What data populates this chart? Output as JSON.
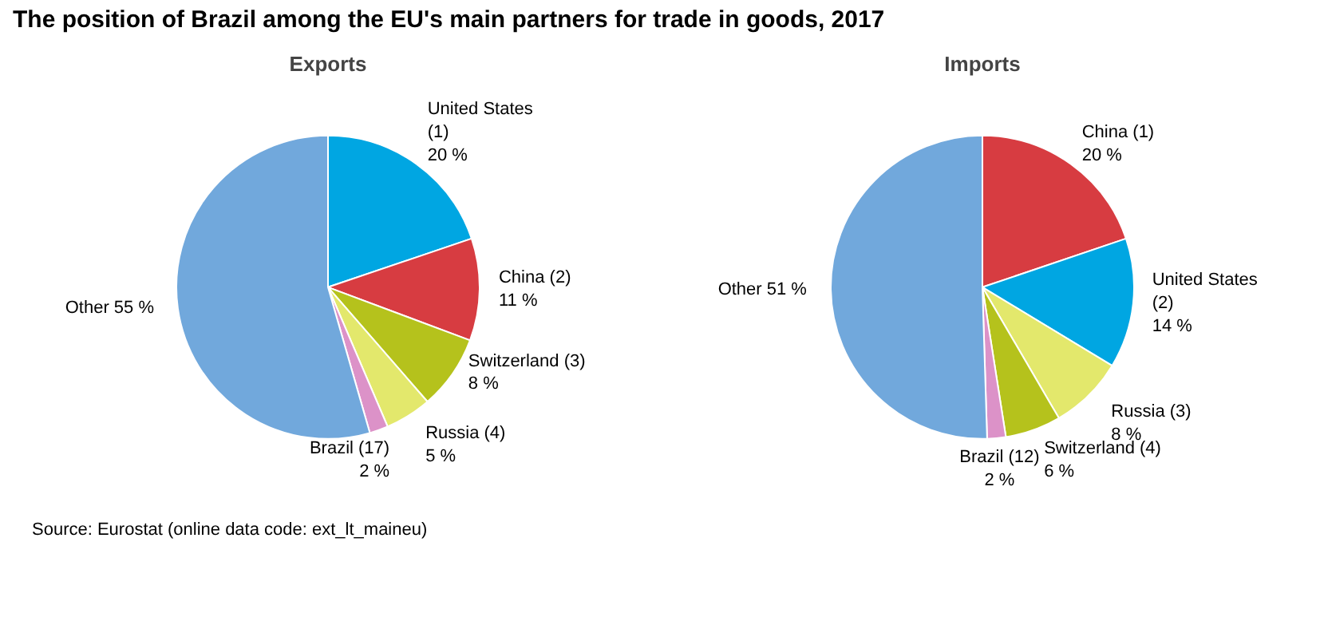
{
  "chart_data": [
    {
      "type": "pie",
      "title": "The position of Brazil among the EU's main partners for trade in goods, 2017",
      "subtitle": "Exports",
      "categories": [
        "United States (1)",
        "China (2)",
        "Switzerland (3)",
        "Russia (4)",
        "Brazil (17)",
        "Other"
      ],
      "values": [
        20,
        11,
        8,
        5,
        2,
        55
      ],
      "value_labels": [
        "20 %",
        "11 %",
        "8 %",
        "5 %",
        "2 %",
        "55  %"
      ],
      "colors": [
        "#00a6e2",
        "#d73c41",
        "#b5c21c",
        "#e3e86c",
        "#dc92c8",
        "#71a8dc"
      ],
      "annotations": [
        "Source: Eurostat (online data code: ext_lt_maineu)"
      ]
    },
    {
      "type": "pie",
      "subtitle": "Imports",
      "categories": [
        "China (1)",
        "United States (2)",
        "Russia (3)",
        "Switzerland (4)",
        "Brazil (12)",
        "Other"
      ],
      "values": [
        20,
        14,
        8,
        6,
        2,
        51
      ],
      "value_labels": [
        "20 %",
        "14 %",
        "8 %",
        "6 %",
        "2 %",
        "51  %"
      ],
      "colors": [
        "#d73c41",
        "#00a6e2",
        "#e3e86c",
        "#b5c21c",
        "#dc92c8",
        "#71a8dc"
      ]
    }
  ]
}
